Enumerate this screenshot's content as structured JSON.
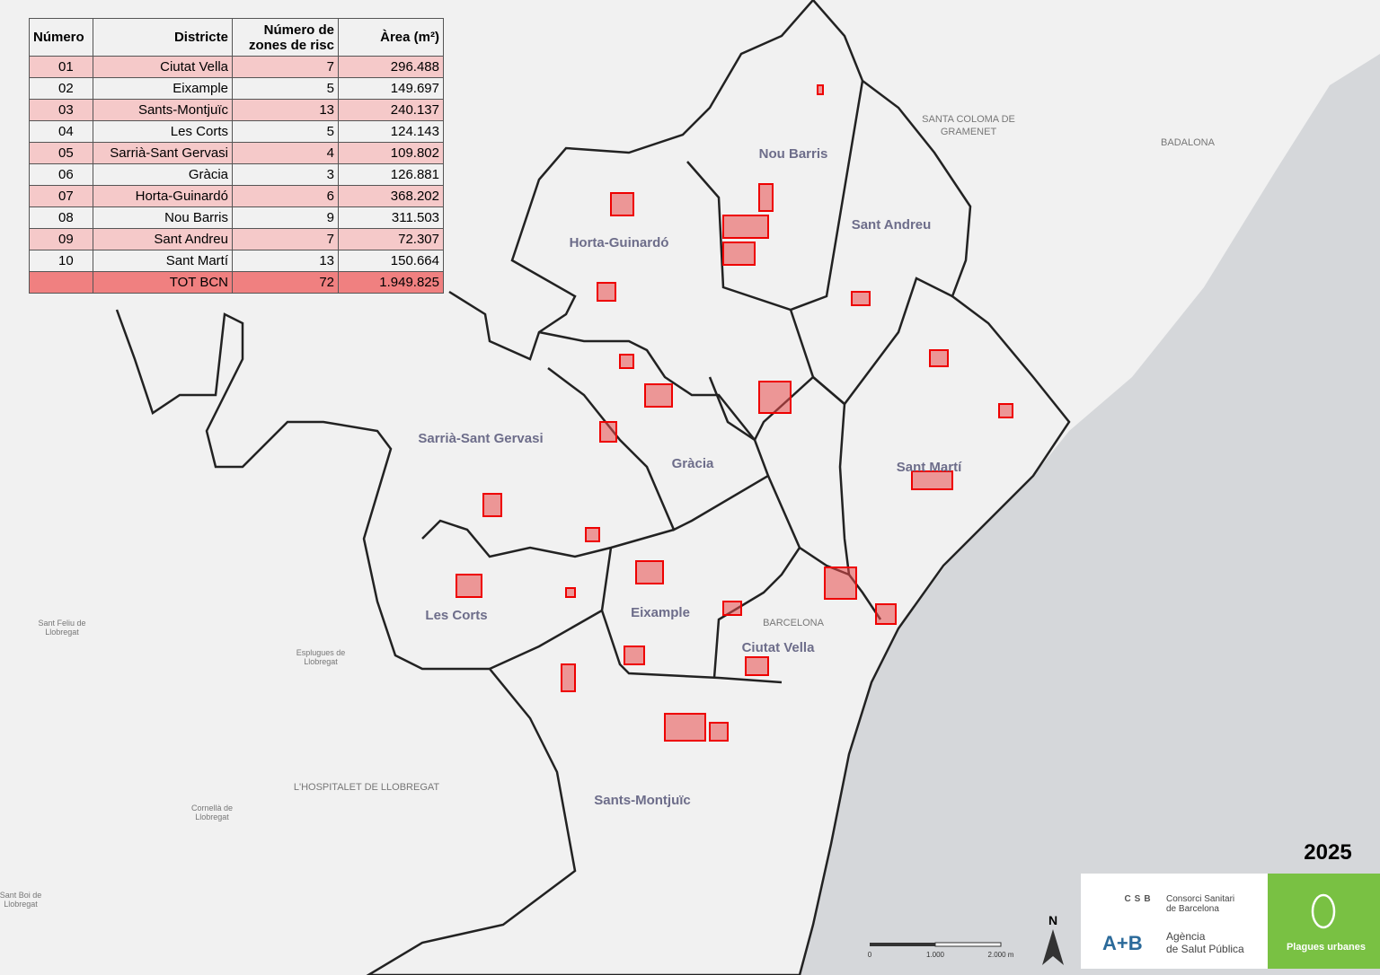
{
  "table": {
    "header": [
      "Número",
      "Districte",
      "Número de zones de risc",
      "Àrea (m²)"
    ],
    "rows": [
      [
        "01",
        "Ciutat Vella",
        7,
        "296.488"
      ],
      [
        "02",
        "Eixample",
        5,
        "149.697"
      ],
      [
        "03",
        "Sants-Montjuïc",
        13,
        "240.137"
      ],
      [
        "04",
        "Les Corts",
        5,
        "124.143"
      ],
      [
        "05",
        "Sarrià-Sant Gervasi",
        4,
        "109.802"
      ],
      [
        "06",
        "Gràcia",
        3,
        "126.881"
      ],
      [
        "07",
        "Horta-Guinardó",
        6,
        "368.202"
      ],
      [
        "08",
        "Nou Barris",
        9,
        "311.503"
      ],
      [
        "09",
        "Sant Andreu",
        7,
        "72.307"
      ],
      [
        "10",
        "Sant Martí",
        13,
        "150.664"
      ]
    ],
    "total": {
      "label": "TOT BCN",
      "count": 72,
      "area": "1.949.825"
    }
  },
  "map": {
    "district_labels": [
      "Nou Barris",
      "Sant Andreu",
      "Horta-Guinardó",
      "Sarrià-Sant Gervasi",
      "Gràcia",
      "Sant Martí",
      "Les Corts",
      "Eixample",
      "Ciutat Vella",
      "Sants-Montjuïc"
    ],
    "place_labels": [
      "SANTA COLOMA DE",
      "GRAMENET",
      "BADALONA",
      "BARCELONA",
      "L'HOSPITALET DE LLOBREGAT",
      "Sant Feliu de",
      "Llobregat",
      "Esplugues de",
      "Llobregat",
      "Cornellà de",
      "Llobregat",
      "Sant Boi de",
      "Llobregat"
    ],
    "scale_labels": [
      "0",
      "1.000",
      "2.000 m"
    ],
    "north": "N"
  },
  "year": "2025",
  "logos": {
    "csb": "CSB",
    "csb_name": [
      "Consorci Sanitari",
      "de Barcelona"
    ],
    "aspb_name": [
      "Agència",
      "de Salut Pública"
    ],
    "plagues": "Plagues urbanes"
  }
}
